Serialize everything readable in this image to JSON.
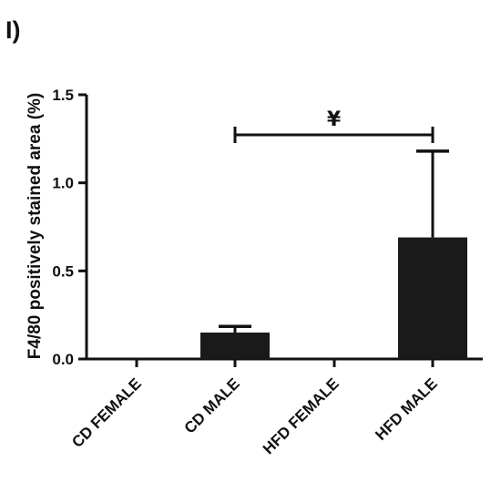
{
  "panel_label": "I)",
  "chart_data": {
    "type": "bar",
    "categories": [
      "CD FEMALE",
      "CD MALE",
      "HFD FEMALE",
      "HFD MALE"
    ],
    "values": [
      0.0,
      0.15,
      0.0,
      0.69
    ],
    "errors": [
      0.0,
      0.035,
      0.0,
      0.49
    ],
    "ylabel": "F4/80 positively stained area (%)",
    "xlabel": "",
    "ylim": [
      0,
      1.5
    ],
    "yticks": [
      "0.0",
      "0.5",
      "1.0",
      "1.5"
    ],
    "bar_color": "#1a1a1a",
    "significance": {
      "from": "CD MALE",
      "to": "HFD MALE",
      "symbol": "¥"
    }
  }
}
